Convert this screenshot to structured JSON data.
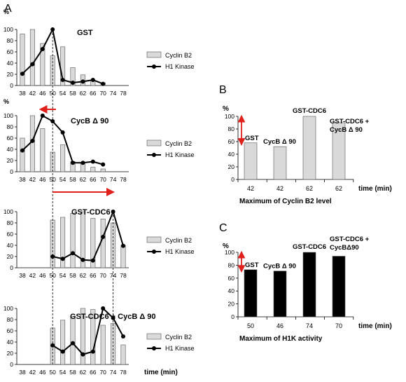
{
  "figure": {
    "panel_labels": [
      "A",
      "B",
      "C"
    ],
    "time_label": "time (min)",
    "percent_label": "%"
  },
  "colors": {
    "bar_light": "#d9d9d9",
    "bar_dark": "#000000",
    "line": "#000000",
    "arrow": "#e0201b"
  },
  "chart_data": [
    {
      "type": "bar+line",
      "title": "GST",
      "x": [
        38,
        42,
        46,
        50,
        54,
        58,
        62,
        66,
        70,
        74,
        78
      ],
      "series": [
        {
          "name": "Cyclin B2",
          "kind": "bar",
          "values": [
            92,
            100,
            75,
            53,
            69,
            32,
            19,
            9,
            5,
            null,
            null
          ]
        },
        {
          "name": "H1 Kinase",
          "kind": "line",
          "values": [
            21,
            38,
            65,
            100,
            10,
            5,
            7,
            10,
            3,
            null,
            null
          ]
        }
      ],
      "ylim": [
        0,
        100
      ],
      "yticks": [
        0,
        20,
        40,
        60,
        80,
        100
      ],
      "ylabel": "%",
      "legend": "right"
    },
    {
      "type": "bar+line",
      "title": "CycB Δ 90",
      "x": [
        38,
        42,
        46,
        50,
        54,
        58,
        62,
        66,
        70,
        74,
        78
      ],
      "series": [
        {
          "name": "Cyclin B2",
          "kind": "bar",
          "values": [
            60,
            100,
            77,
            35,
            48,
            18,
            15,
            8,
            5,
            null,
            null
          ]
        },
        {
          "name": "H1 Kinase",
          "kind": "line",
          "values": [
            38,
            55,
            100,
            90,
            70,
            16,
            16,
            18,
            13,
            null,
            null
          ]
        }
      ],
      "ylim": [
        0,
        100
      ],
      "yticks": [
        0,
        20,
        40,
        60,
        80,
        100
      ],
      "annotation": "arrow pointing earlier from 50 min",
      "legend": "right"
    },
    {
      "type": "bar+line",
      "title": "GST-CDC6",
      "x": [
        38,
        42,
        46,
        50,
        54,
        58,
        62,
        66,
        70,
        74,
        78
      ],
      "series": [
        {
          "name": "Cyclin B2",
          "kind": "bar",
          "values": [
            null,
            null,
            null,
            85,
            90,
            97,
            100,
            88,
            87,
            80,
            40
          ]
        },
        {
          "name": "H1 Kinase",
          "kind": "line",
          "values": [
            null,
            null,
            null,
            20,
            16,
            26,
            14,
            13,
            55,
            100,
            39
          ]
        }
      ],
      "ylim": [
        0,
        100
      ],
      "yticks": [
        0,
        20,
        40,
        60,
        80,
        100
      ],
      "annotation": "arrow pointing later from 50 to 74 min",
      "legend": "right"
    },
    {
      "type": "bar+line",
      "title": "GST-CDC6 + CycB Δ 90",
      "x": [
        38,
        42,
        46,
        50,
        54,
        58,
        62,
        66,
        70,
        74,
        78
      ],
      "series": [
        {
          "name": "Cyclin B2",
          "kind": "bar",
          "values": [
            null,
            null,
            null,
            65,
            79,
            86,
            100,
            98,
            70,
            73,
            35
          ]
        },
        {
          "name": "H1 Kinase",
          "kind": "line",
          "values": [
            null,
            null,
            null,
            34,
            23,
            38,
            18,
            23,
            100,
            83,
            50
          ]
        }
      ],
      "ylim": [
        0,
        100
      ],
      "yticks": [
        0,
        20,
        40,
        60,
        80,
        100
      ],
      "xlabel": "time (min)",
      "legend": "right"
    },
    {
      "type": "bar",
      "panel": "B",
      "categories": [
        "42",
        "42",
        "62",
        "62"
      ],
      "series_labels": [
        "GST",
        "CycB Δ 90",
        "GST-CDC6",
        "GST-CDC6 + CycB Δ 90"
      ],
      "values": [
        58,
        52,
        100,
        90
      ],
      "ylim": [
        0,
        100
      ],
      "yticks": [
        0,
        20,
        40,
        60,
        80,
        100
      ],
      "ylabel": "%",
      "xlabel": "time (min)",
      "caption": "Maximum of Cyclin B2 level"
    },
    {
      "type": "bar",
      "panel": "C",
      "categories": [
        "50",
        "46",
        "74",
        "70"
      ],
      "series_labels": [
        "GST",
        "CycB Δ 90",
        "GST-CDC6",
        "GST-CDC6 + CycBΔ90"
      ],
      "values": [
        73,
        71,
        100,
        94
      ],
      "ylim": [
        0,
        100
      ],
      "yticks": [
        0,
        20,
        40,
        60,
        80,
        100
      ],
      "ylabel": "%",
      "xlabel": "time (min)",
      "caption": "Maximum of H1K activity"
    }
  ]
}
